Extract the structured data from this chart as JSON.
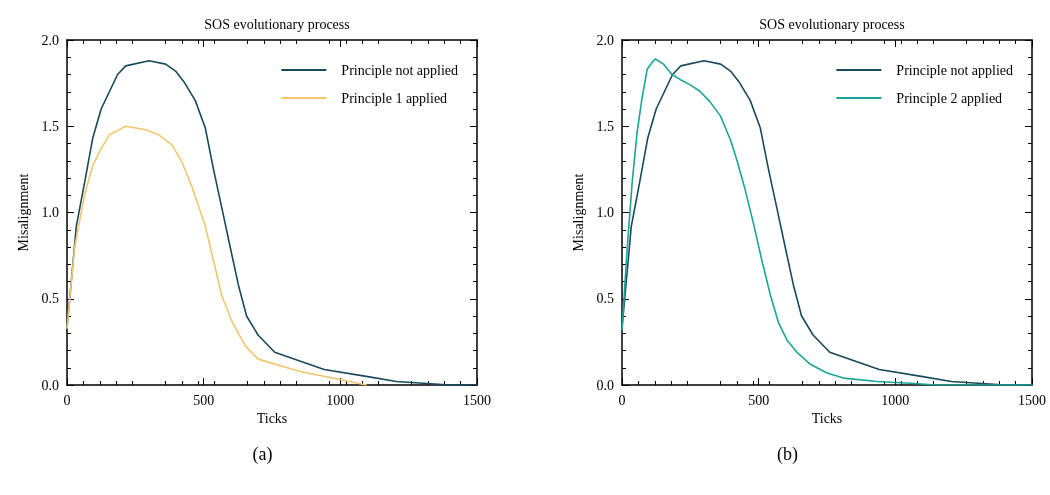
{
  "chart_data": [
    {
      "type": "line",
      "title": "SOS evolutionary process",
      "xlabel": "Ticks",
      "ylabel": "Misalignment",
      "annotations": [
        "(a)"
      ],
      "xlim": [
        0,
        1500
      ],
      "xticks": [
        0,
        500,
        1000,
        1500
      ],
      "ylim": [
        0,
        2
      ],
      "yticks": [
        {
          "value": 0,
          "label": "0.0"
        },
        {
          "value": 0.5,
          "label": "0.5"
        },
        {
          "value": 1,
          "label": "1.0"
        },
        {
          "value": 1.5,
          "label": "1.5"
        },
        {
          "value": 2,
          "label": "2.0"
        }
      ],
      "grid": false,
      "legend": "top right",
      "marker": "none",
      "line_style": "solid",
      "series": [
        {
          "name": "Principle not applied",
          "color": "#174a5b",
          "x": [
            0,
            34,
            64,
            94,
            125,
            155,
            185,
            215,
            300,
            361,
            397,
            427,
            469,
            506,
            536,
            566,
            597,
            627,
            657,
            699,
            760,
            849,
            941,
            1095,
            1205,
            1303,
            1402,
            1440,
            1500
          ],
          "values": [
            0.33,
            0.92,
            1.17,
            1.43,
            1.6,
            1.7,
            1.8,
            1.85,
            1.88,
            1.86,
            1.82,
            1.76,
            1.65,
            1.49,
            1.25,
            1.03,
            0.8,
            0.58,
            0.4,
            0.29,
            0.19,
            0.14,
            0.09,
            0.05,
            0.02,
            0.01,
            0,
            0,
            0
          ]
        },
        {
          "name": "Principle 1 applied",
          "color": "#f2c66d",
          "x": [
            0,
            28,
            64,
            94,
            125,
            155,
            215,
            288,
            336,
            385,
            421,
            457,
            506,
            536,
            566,
            603,
            651,
            699,
            849,
            1002,
            1095
          ],
          "values": [
            0.33,
            0.8,
            1.1,
            1.27,
            1.37,
            1.45,
            1.5,
            1.48,
            1.45,
            1.39,
            1.29,
            1.15,
            0.92,
            0.72,
            0.52,
            0.37,
            0.23,
            0.15,
            0.08,
            0.03,
            0
          ]
        }
      ]
    },
    {
      "type": "line",
      "title": "SOS evolutionary process",
      "xlabel": "Ticks",
      "ylabel": "Misalignment",
      "annotations": [
        "(b)"
      ],
      "xlim": [
        0,
        1500
      ],
      "xticks": [
        0,
        500,
        1000,
        1500
      ],
      "ylim": [
        0,
        2
      ],
      "yticks": [
        {
          "value": 0,
          "label": "0.0"
        },
        {
          "value": 0.5,
          "label": "0.5"
        },
        {
          "value": 1,
          "label": "1.0"
        },
        {
          "value": 1.5,
          "label": "1.5"
        },
        {
          "value": 2,
          "label": "2.0"
        }
      ],
      "grid": false,
      "legend": "top right",
      "marker": "none",
      "line_style": "solid",
      "series": [
        {
          "name": "Principle not applied",
          "color": "#174a5b",
          "x": [
            0,
            34,
            64,
            94,
            125,
            155,
            185,
            215,
            300,
            361,
            397,
            427,
            469,
            506,
            536,
            566,
            597,
            627,
            657,
            699,
            760,
            849,
            941,
            1095,
            1205,
            1303,
            1402,
            1440,
            1500
          ],
          "values": [
            0.33,
            0.92,
            1.17,
            1.43,
            1.6,
            1.7,
            1.8,
            1.85,
            1.88,
            1.86,
            1.82,
            1.76,
            1.65,
            1.49,
            1.25,
            1.03,
            0.8,
            0.58,
            0.4,
            0.29,
            0.19,
            0.14,
            0.09,
            0.05,
            0.02,
            0.01,
            0,
            0,
            0
          ]
        },
        {
          "name": "Principle 2 applied",
          "color": "#1aa597",
          "x": [
            0,
            18,
            37,
            55,
            73,
            92,
            110,
            122,
            152,
            183,
            214,
            250,
            287,
            323,
            360,
            397,
            421,
            451,
            482,
            512,
            543,
            573,
            604,
            640,
            689,
            750,
            811,
            933,
            1055,
            1150,
            1500
          ],
          "values": [
            0.32,
            0.77,
            1.17,
            1.46,
            1.66,
            1.83,
            1.87,
            1.89,
            1.86,
            1.8,
            1.77,
            1.74,
            1.7,
            1.64,
            1.56,
            1.42,
            1.3,
            1.13,
            0.93,
            0.72,
            0.52,
            0.36,
            0.26,
            0.19,
            0.12,
            0.07,
            0.04,
            0.02,
            0.01,
            0,
            0
          ]
        }
      ]
    }
  ]
}
